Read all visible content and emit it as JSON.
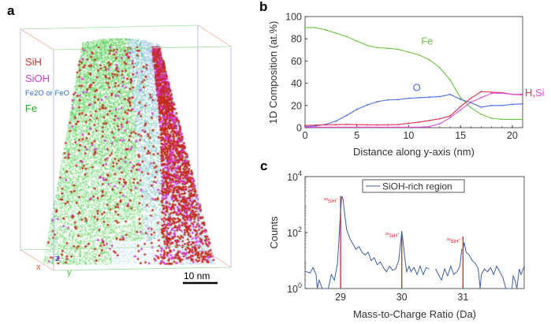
{
  "panel_a": {
    "letter": "a",
    "legend": [
      {
        "label": "SiH",
        "color": "#e0302a"
      },
      {
        "label": "SiOH",
        "color": "#d63bd6"
      },
      {
        "label": "Fe2O or FeO",
        "color": "#2f6fd6"
      },
      {
        "label": "Fe",
        "color": "#22bb22"
      }
    ],
    "axes": {
      "x": "x",
      "y": "y",
      "z": "z"
    },
    "scale_bar": "10 nm"
  },
  "chart_data": [
    {
      "panel": "b",
      "type": "line",
      "xlabel": "Distance along y-axis (nm)",
      "ylabel": "1D Composition (at.%)",
      "xlim": [
        0,
        21
      ],
      "ylim": [
        0,
        100
      ],
      "xticks": [
        0,
        5,
        10,
        15,
        20
      ],
      "yticks": [
        0,
        20,
        40,
        60,
        80,
        100
      ],
      "x": [
        0,
        1,
        2,
        3,
        4,
        5,
        6,
        7,
        8,
        9,
        10,
        11,
        12,
        13,
        14,
        15,
        16,
        17,
        18,
        19,
        20,
        21
      ],
      "series": [
        {
          "name": "Fe",
          "color": "#6cc644",
          "values": [
            90,
            90,
            88,
            85,
            82,
            78,
            74,
            72,
            71.5,
            70.5,
            68,
            65.5,
            61,
            54,
            43,
            27,
            18,
            12,
            8.5,
            7.5,
            7.5,
            7.5
          ]
        },
        {
          "name": "O",
          "color": "#4a6de0",
          "values": [
            1,
            1.5,
            3,
            6,
            11,
            16.5,
            20.5,
            23.5,
            25,
            25.3,
            26.5,
            27,
            27.5,
            28,
            30,
            25.5,
            22.5,
            18.5,
            20,
            20,
            21,
            21.5
          ]
        },
        {
          "name": "H",
          "color": "#e0304a",
          "values": [
            2,
            2.3,
            2.6,
            2.8,
            3,
            2.8,
            2.6,
            2.5,
            2.6,
            2.8,
            4,
            5,
            6.5,
            8,
            10.5,
            19,
            26.5,
            32.5,
            32,
            31.5,
            30,
            30
          ]
        },
        {
          "name": "Si",
          "color": "#e050e0",
          "values": [
            0.5,
            0.5,
            0.5,
            0.5,
            0.5,
            0.5,
            0.5,
            0.5,
            0.5,
            0.5,
            0.5,
            0.5,
            1,
            3.5,
            9,
            16,
            23,
            27,
            31,
            31,
            30,
            29.5
          ]
        }
      ],
      "annotations": [
        {
          "text": "Fe",
          "x": 11.2,
          "y": 75,
          "color": "#6cc644"
        },
        {
          "text": "O",
          "x": 10.4,
          "y": 33,
          "color": "#4a6de0"
        },
        {
          "text": "H",
          "color": "#e0304a"
        },
        {
          "text": ",",
          "color": "#e0304a"
        },
        {
          "text": "Si",
          "color": "#e050e0"
        }
      ]
    },
    {
      "panel": "c",
      "type": "line",
      "xlabel": "Mass-to-Charge Ratio (Da)",
      "ylabel": "Counts",
      "yscale": "log",
      "xlim": [
        28.42,
        32.0
      ],
      "ylim_log10": [
        0,
        4
      ],
      "xticks": [
        29,
        30,
        31
      ],
      "yticks": [
        {
          "base": "10",
          "exp": "0"
        },
        {
          "base": "10",
          "exp": "2"
        },
        {
          "base": "10",
          "exp": "4"
        }
      ],
      "legend": {
        "label": "SiOH-rich region",
        "placement": "top-center"
      },
      "series": [
        {
          "name": "SiOH-rich region",
          "color": "#3f5fa8",
          "x": [
            28.42,
            28.45,
            28.5,
            28.55,
            28.6,
            28.62,
            28.65,
            28.7,
            28.8,
            28.85,
            28.9,
            28.95,
            28.98,
            29.0,
            29.02,
            29.04,
            29.07,
            29.1,
            29.15,
            29.2,
            29.25,
            29.3,
            29.35,
            29.4,
            29.45,
            29.5,
            29.55,
            29.6,
            29.65,
            29.7,
            29.75,
            29.8,
            29.85,
            29.9,
            29.95,
            29.98,
            30.0,
            30.02,
            30.05,
            30.08,
            30.12,
            30.15,
            30.2,
            30.25,
            30.3,
            30.35,
            30.4,
            30.45,
            null,
            30.55,
            30.6,
            30.65,
            30.7,
            30.75,
            30.8,
            30.85,
            30.9,
            30.95,
            30.98,
            31.0,
            31.02,
            31.05,
            31.1,
            31.15,
            31.2,
            31.25,
            31.28,
            31.3,
            31.35,
            31.4,
            31.45,
            31.5,
            31.55,
            31.6,
            31.65,
            31.7,
            31.8,
            31.82,
            31.85,
            31.88,
            31.92,
            31.95,
            32.0
          ],
          "log10_counts": [
            0.6,
            0.6,
            0.55,
            0.75,
            0.5,
            0,
            0.3,
            0,
            0,
            0.5,
            0.3,
            0.9,
            2.0,
            2.8,
            3.3,
            3.2,
            2.6,
            2.1,
            1.8,
            1.6,
            1.4,
            1.5,
            1.3,
            1.2,
            1.3,
            1.0,
            1.1,
            0.85,
            0.95,
            0.75,
            0.6,
            0.8,
            0.65,
            0.7,
            1.0,
            1.6,
            2.05,
            1.7,
            1.1,
            0.6,
            0.8,
            0.6,
            0.75,
            0.5,
            0.8,
            0.5,
            0.75,
            0.7,
            null,
            0.7,
            0.5,
            0.3,
            0.7,
            0.45,
            0.8,
            0.5,
            0.6,
            0.8,
            1.4,
            1.4,
            1.65,
            1.3,
            1.2,
            1.0,
            0.9,
            0.7,
            0,
            0.5,
            0.7,
            0.6,
            0.75,
            0.5,
            0.8,
            0.6,
            0.4,
            0,
            0,
            0.45,
            0.3,
            0,
            0.7,
            0.5,
            0.8
          ]
        }
      ],
      "peak_markers": [
        {
          "x": 29,
          "log10_height": 3.3,
          "label_sup": "28",
          "label": "SiH",
          "charge": "+"
        },
        {
          "x": 30,
          "log10_height": 2.05,
          "label_sup": "29",
          "label": "SiH",
          "charge": "+"
        },
        {
          "x": 31,
          "log10_height": 1.86,
          "label_sup": "30",
          "label": "SiH",
          "charge": "+"
        }
      ],
      "marker_color": "#e0202a"
    }
  ]
}
